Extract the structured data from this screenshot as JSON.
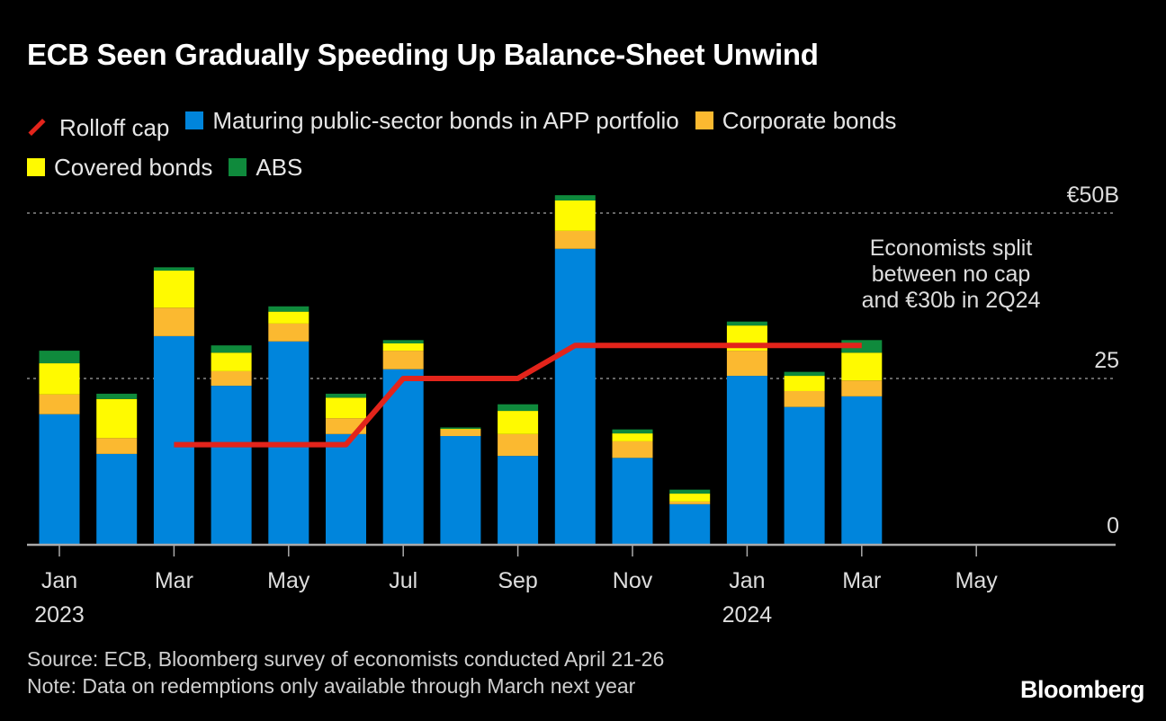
{
  "title": "ECB Seen Gradually Speeding Up Balance-Sheet Unwind",
  "legend": [
    {
      "label": "Rolloff cap",
      "color": "#e3241b",
      "shape": "line"
    },
    {
      "label": "Maturing public-sector bonds in APP portfolio",
      "color": "#0085dc",
      "shape": "square"
    },
    {
      "label": "Corporate bonds",
      "color": "#fbb930",
      "shape": "square"
    },
    {
      "label": "Covered bonds",
      "color": "#fffa00",
      "shape": "square"
    },
    {
      "label": "ABS",
      "color": "#0f8a3c",
      "shape": "square"
    }
  ],
  "source": "Source: ECB, Bloomberg survey of economists conducted April 21-26",
  "note": "Note: Data on redemptions only available through March next year",
  "brand": "Bloomberg",
  "chart_data": {
    "type": "bar",
    "stacked": true,
    "categories": [
      "2023-01",
      "2023-02",
      "2023-03",
      "2023-04",
      "2023-05",
      "2023-06",
      "2023-07",
      "2023-08",
      "2023-09",
      "2023-10",
      "2023-11",
      "2023-12",
      "2024-01",
      "2024-02",
      "2024-03",
      "2024-04",
      "2024-05",
      "2024-06",
      "2024-07"
    ],
    "series": [
      {
        "name": "Maturing public-sector bonds in APP portfolio",
        "color": "#0085dc",
        "values": [
          19.6,
          13.6,
          31.4,
          23.9,
          30.6,
          16.6,
          26.4,
          16.3,
          13.3,
          44.6,
          13.0,
          6.0,
          25.4,
          20.7,
          22.3,
          null,
          null,
          null,
          null
        ]
      },
      {
        "name": "Corporate bonds",
        "color": "#fbb930",
        "values": [
          3.0,
          2.4,
          4.3,
          2.2,
          2.7,
          2.4,
          2.8,
          1.0,
          3.3,
          2.7,
          2.5,
          0.4,
          3.8,
          2.4,
          2.4,
          null,
          null,
          null,
          null
        ]
      },
      {
        "name": "Covered bonds",
        "color": "#fffa00",
        "values": [
          4.7,
          5.9,
          5.6,
          2.8,
          1.8,
          3.1,
          1.1,
          0.1,
          3.5,
          4.6,
          1.2,
          1.2,
          3.8,
          2.3,
          4.2,
          null,
          null,
          null,
          null
        ]
      },
      {
        "name": "ABS",
        "color": "#0f8a3c",
        "values": [
          1.9,
          0.8,
          0.5,
          1.1,
          0.8,
          0.6,
          0.5,
          0.2,
          1.0,
          0.8,
          0.6,
          0.6,
          0.6,
          0.6,
          1.9,
          null,
          null,
          null,
          null
        ]
      }
    ],
    "line": {
      "name": "Rolloff cap",
      "color": "#e3241b",
      "values": [
        null,
        null,
        15,
        15,
        15,
        15,
        25,
        25,
        25,
        30,
        30,
        30,
        30,
        30,
        30,
        null,
        null,
        null,
        null
      ]
    },
    "x_tick_labels": [
      {
        "i": 0,
        "label": "Jan",
        "sub": "2023"
      },
      {
        "i": 2,
        "label": "Mar"
      },
      {
        "i": 4,
        "label": "May"
      },
      {
        "i": 6,
        "label": "Jul"
      },
      {
        "i": 8,
        "label": "Sep"
      },
      {
        "i": 10,
        "label": "Nov"
      },
      {
        "i": 12,
        "label": "Jan",
        "sub": "2024"
      },
      {
        "i": 14,
        "label": "Mar"
      },
      {
        "i": 16,
        "label": "May"
      }
    ],
    "y_ticks": [
      {
        "v": 0,
        "label": "0"
      },
      {
        "v": 25,
        "label": "25"
      },
      {
        "v": 50,
        "label": "€50B"
      }
    ],
    "ylim": [
      0,
      53
    ],
    "grid": "dotted horizontal",
    "annotation": [
      "Economists split",
      "between no cap",
      "and €30b in 2Q24"
    ]
  }
}
